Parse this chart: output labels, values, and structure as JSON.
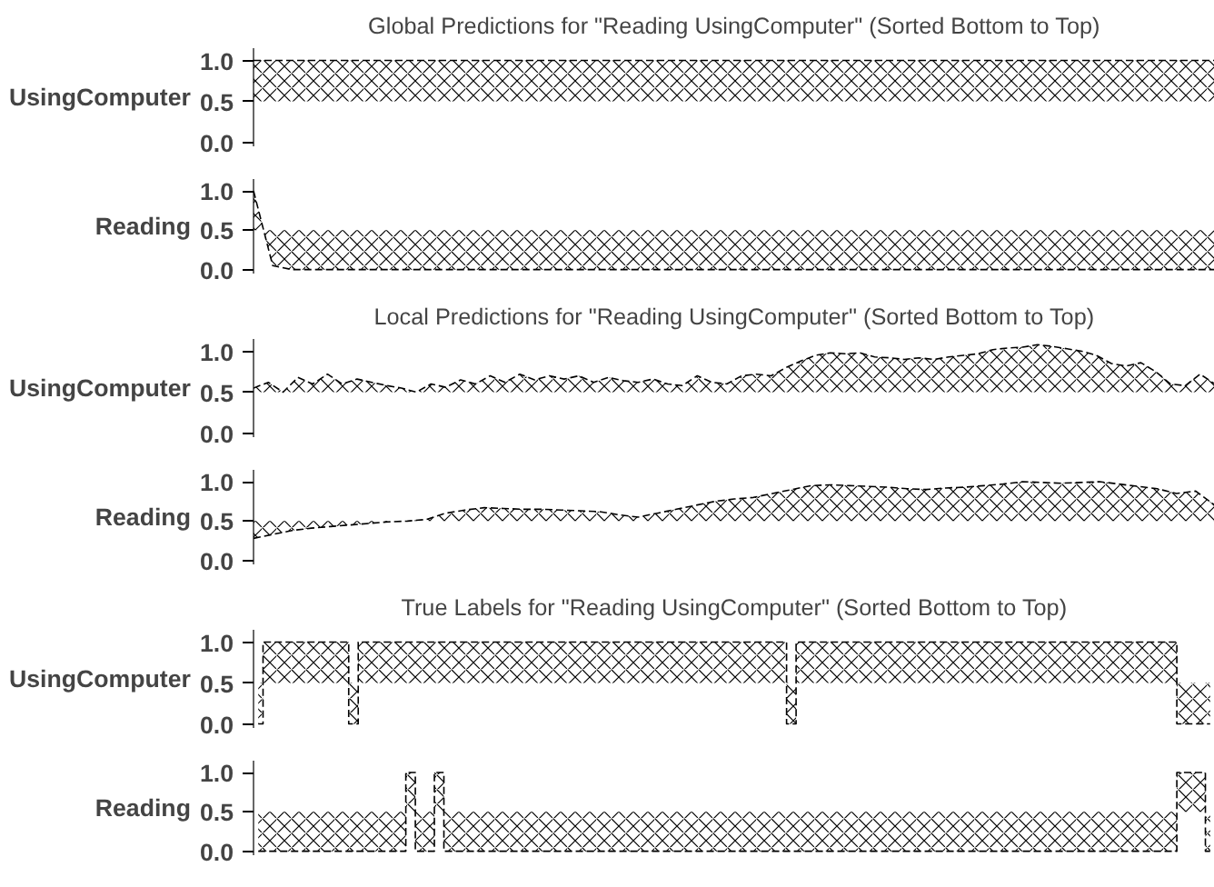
{
  "chart_data": [
    {
      "type": "line",
      "title": "Global Predictions for \"Reading UsingComputer\" (Sorted Bottom to Top)",
      "ylabel": "UsingComputer",
      "categories": [
        null,
        null,
        null,
        null,
        null,
        null,
        null,
        null,
        null,
        null,
        null,
        null,
        null,
        null,
        null,
        null,
        null,
        null,
        null,
        null,
        null,
        null,
        null,
        null,
        null,
        null,
        null,
        null,
        null,
        null,
        null,
        null,
        null,
        null,
        null,
        null,
        null,
        null,
        null,
        null,
        null,
        null,
        null,
        null,
        null,
        null,
        null,
        null,
        null,
        null,
        null
      ],
      "ylim": [
        -0.05,
        1.15
      ],
      "yticks": [
        {
          "value": 0,
          "label": "0.0"
        },
        {
          "value": 0.5,
          "label": "0.5"
        },
        {
          "value": 1,
          "label": "1.0"
        }
      ],
      "tick_labels": "y",
      "line_style": "dashed",
      "series": [
        {
          "color": "#000000",
          "values": [
            1,
            1,
            1,
            1,
            1,
            1,
            1,
            1,
            1,
            1,
            1,
            1,
            1,
            1,
            1,
            1,
            1,
            1,
            1,
            1,
            1,
            1,
            1,
            1,
            1,
            1,
            1,
            1,
            1,
            1,
            1,
            1,
            1,
            1,
            1,
            1,
            1,
            1,
            1,
            1,
            1,
            1,
            1,
            1,
            1,
            1,
            1,
            1,
            1,
            1,
            1
          ],
          "lower": [
            0.5,
            0.5,
            0.5,
            0.5,
            0.5,
            0.5,
            0.5,
            0.5,
            0.5,
            0.5,
            0.5,
            0.5,
            0.5,
            0.5,
            0.5,
            0.5,
            0.5,
            0.5,
            0.5,
            0.5,
            0.5,
            0.5,
            0.5,
            0.5,
            0.5,
            0.5,
            0.5,
            0.5,
            0.5,
            0.5,
            0.5,
            0.5,
            0.5,
            0.5,
            0.5,
            0.5,
            0.5,
            0.5,
            0.5,
            0.5,
            0.5,
            0.5,
            0.5,
            0.5,
            0.5,
            0.5,
            0.5,
            0.5,
            0.5,
            0.5,
            0.5
          ],
          "upper": [
            1,
            1,
            1,
            1,
            1,
            1,
            1,
            1,
            1,
            1,
            1,
            1,
            1,
            1,
            1,
            1,
            1,
            1,
            1,
            1,
            1,
            1,
            1,
            1,
            1,
            1,
            1,
            1,
            1,
            1,
            1,
            1,
            1,
            1,
            1,
            1,
            1,
            1,
            1,
            1,
            1,
            1,
            1,
            1,
            1,
            1,
            1,
            1,
            1,
            1,
            1
          ]
        }
      ]
    },
    {
      "type": "line",
      "ylabel": "Reading",
      "categories": [
        null,
        null,
        null,
        null,
        null,
        null,
        null,
        null,
        null,
        null,
        null,
        null,
        null,
        null,
        null,
        null,
        null,
        null,
        null,
        null,
        null,
        null,
        null,
        null,
        null,
        null,
        null,
        null,
        null,
        null,
        null,
        null,
        null,
        null,
        null,
        null,
        null,
        null,
        null,
        null,
        null,
        null,
        null,
        null,
        null,
        null,
        null,
        null,
        null,
        null,
        null
      ],
      "ylim": [
        -0.05,
        1.15
      ],
      "yticks": [
        {
          "value": 0,
          "label": "0.0"
        },
        {
          "value": 0.5,
          "label": "0.5"
        },
        {
          "value": 1,
          "label": "1.0"
        }
      ],
      "tick_labels": "y",
      "line_style": "dashed",
      "series": [
        {
          "color": "#000000",
          "values": [
            1.0,
            0.05,
            0,
            0,
            0,
            0,
            0,
            0,
            0,
            0,
            0,
            0,
            0,
            0,
            0,
            0,
            0,
            0,
            0,
            0,
            0,
            0,
            0,
            0,
            0,
            0,
            0,
            0,
            0,
            0,
            0,
            0,
            0,
            0,
            0,
            0,
            0,
            0,
            0,
            0,
            0,
            0,
            0,
            0,
            0,
            0,
            0,
            0,
            0,
            0,
            0
          ],
          "lower": [
            0.5,
            0.5,
            0.5,
            0.5,
            0.5,
            0.5,
            0.5,
            0.5,
            0.5,
            0.5,
            0.5,
            0.5,
            0.5,
            0.5,
            0.5,
            0.5,
            0.5,
            0.5,
            0.5,
            0.5,
            0.5,
            0.5,
            0.5,
            0.5,
            0.5,
            0.5,
            0.5,
            0.5,
            0.5,
            0.5,
            0.5,
            0.5,
            0.5,
            0.5,
            0.5,
            0.5,
            0.5,
            0.5,
            0.5,
            0.5,
            0.5,
            0.5,
            0.5,
            0.5,
            0.5,
            0.5,
            0.5,
            0.5,
            0.5,
            0.5,
            0.5
          ],
          "upper": [
            1.0,
            0.05,
            0,
            0,
            0,
            0,
            0,
            0,
            0,
            0,
            0,
            0,
            0,
            0,
            0,
            0,
            0,
            0,
            0,
            0,
            0,
            0,
            0,
            0,
            0,
            0,
            0,
            0,
            0,
            0,
            0,
            0,
            0,
            0,
            0,
            0,
            0,
            0,
            0,
            0,
            0,
            0,
            0,
            0,
            0,
            0,
            0,
            0,
            0,
            0,
            0
          ]
        }
      ]
    },
    {
      "type": "line",
      "title": "Local Predictions for \"Reading UsingComputer\" (Sorted Bottom to Top)",
      "ylabel": "UsingComputer",
      "categories": [
        null,
        null,
        null,
        null,
        null,
        null,
        null,
        null,
        null,
        null,
        null,
        null,
        null,
        null,
        null,
        null,
        null,
        null,
        null,
        null,
        null,
        null,
        null,
        null,
        null,
        null,
        null,
        null,
        null,
        null,
        null,
        null,
        null,
        null,
        null,
        null,
        null,
        null,
        null,
        null,
        null,
        null,
        null,
        null,
        null,
        null,
        null,
        null,
        null,
        null,
        null,
        null,
        null,
        null,
        null,
        null,
        null,
        null,
        null,
        null,
        null,
        null,
        null,
        null,
        null,
        null
      ],
      "ylim": [
        -0.05,
        1.15
      ],
      "yticks": [
        {
          "value": 0,
          "label": "0.0"
        },
        {
          "value": 0.5,
          "label": "0.5"
        },
        {
          "value": 1,
          "label": "1.0"
        }
      ],
      "tick_labels": "y",
      "line_style": "dashed",
      "series": [
        {
          "color": "#000000",
          "values": [
            0.55,
            0.62,
            0.5,
            0.68,
            0.6,
            0.72,
            0.6,
            0.66,
            0.62,
            0.58,
            0.55,
            0.5,
            0.6,
            0.56,
            0.65,
            0.6,
            0.7,
            0.62,
            0.72,
            0.65,
            0.7,
            0.66,
            0.7,
            0.62,
            0.68,
            0.64,
            0.62,
            0.66,
            0.6,
            0.58,
            0.7,
            0.62,
            0.6,
            0.7,
            0.72,
            0.7,
            0.8,
            0.88,
            0.95,
            0.98,
            0.97,
            0.98,
            0.93,
            0.92,
            0.9,
            0.92,
            0.9,
            0.93,
            0.95,
            0.97,
            1.02,
            1.04,
            1.05,
            1.08,
            1.06,
            1.03,
            1.0,
            0.95,
            0.85,
            0.82,
            0.86,
            0.75,
            0.6,
            0.58,
            0.72,
            0.6
          ],
          "lower": [
            0.5,
            0.5,
            0.5,
            0.5,
            0.5,
            0.5,
            0.5,
            0.5,
            0.5,
            0.5,
            0.5,
            0.5,
            0.5,
            0.5,
            0.5,
            0.5,
            0.5,
            0.5,
            0.5,
            0.5,
            0.5,
            0.5,
            0.5,
            0.5,
            0.5,
            0.5,
            0.5,
            0.5,
            0.5,
            0.5,
            0.5,
            0.5,
            0.5,
            0.5,
            0.5,
            0.5,
            0.5,
            0.5,
            0.5,
            0.5,
            0.5,
            0.5,
            0.5,
            0.5,
            0.5,
            0.5,
            0.5,
            0.5,
            0.5,
            0.5,
            0.5,
            0.5,
            0.5,
            0.5,
            0.5,
            0.5,
            0.5,
            0.5,
            0.5,
            0.5,
            0.5,
            0.5,
            0.5,
            0.5,
            0.5,
            0.5
          ],
          "upper": [
            0.55,
            0.62,
            0.5,
            0.68,
            0.6,
            0.72,
            0.6,
            0.66,
            0.62,
            0.58,
            0.55,
            0.5,
            0.6,
            0.56,
            0.65,
            0.6,
            0.7,
            0.62,
            0.72,
            0.65,
            0.7,
            0.66,
            0.7,
            0.62,
            0.68,
            0.64,
            0.62,
            0.66,
            0.6,
            0.58,
            0.7,
            0.62,
            0.6,
            0.7,
            0.72,
            0.7,
            0.8,
            0.88,
            0.95,
            0.98,
            0.97,
            0.98,
            0.93,
            0.92,
            0.9,
            0.92,
            0.9,
            0.93,
            0.95,
            0.97,
            1.02,
            1.04,
            1.05,
            1.08,
            1.06,
            1.03,
            1.0,
            0.95,
            0.85,
            0.82,
            0.86,
            0.75,
            0.6,
            0.58,
            0.72,
            0.6
          ]
        }
      ]
    },
    {
      "type": "line",
      "ylabel": "Reading",
      "categories": [
        null,
        null,
        null,
        null,
        null,
        null,
        null,
        null,
        null,
        null,
        null,
        null,
        null,
        null,
        null,
        null,
        null,
        null,
        null,
        null,
        null,
        null,
        null,
        null,
        null,
        null,
        null,
        null,
        null,
        null,
        null,
        null,
        null,
        null,
        null,
        null,
        null,
        null,
        null,
        null,
        null,
        null,
        null,
        null,
        null,
        null,
        null,
        null,
        null,
        null,
        null
      ],
      "ylim": [
        -0.05,
        1.15
      ],
      "yticks": [
        {
          "value": 0,
          "label": "0.0"
        },
        {
          "value": 0.5,
          "label": "0.5"
        },
        {
          "value": 1,
          "label": "1.0"
        }
      ],
      "tick_labels": "y",
      "line_style": "dashed",
      "series": [
        {
          "color": "#000000",
          "values": [
            0.28,
            0.33,
            0.38,
            0.41,
            0.43,
            0.45,
            0.47,
            0.49,
            0.5,
            0.52,
            0.6,
            0.64,
            0.67,
            0.66,
            0.65,
            0.65,
            0.64,
            0.63,
            0.62,
            0.58,
            0.55,
            0.6,
            0.65,
            0.7,
            0.75,
            0.78,
            0.8,
            0.85,
            0.9,
            0.95,
            0.96,
            0.95,
            0.94,
            0.93,
            0.91,
            0.9,
            0.92,
            0.93,
            0.95,
            0.97,
            1.0,
            0.99,
            0.98,
            0.99,
            1.0,
            0.97,
            0.94,
            0.91,
            0.85,
            0.88,
            0.7
          ],
          "lower": [
            0.5,
            0.5,
            0.5,
            0.5,
            0.5,
            0.5,
            0.5,
            0.5,
            0.5,
            0.5,
            0.5,
            0.5,
            0.5,
            0.5,
            0.5,
            0.5,
            0.5,
            0.5,
            0.5,
            0.5,
            0.5,
            0.5,
            0.5,
            0.5,
            0.5,
            0.5,
            0.5,
            0.5,
            0.5,
            0.5,
            0.5,
            0.5,
            0.5,
            0.5,
            0.5,
            0.5,
            0.5,
            0.5,
            0.5,
            0.5,
            0.5,
            0.5,
            0.5,
            0.5,
            0.5,
            0.5,
            0.5,
            0.5,
            0.5,
            0.5,
            0.5
          ],
          "upper": [
            0.28,
            0.33,
            0.38,
            0.41,
            0.43,
            0.45,
            0.47,
            0.49,
            0.5,
            0.52,
            0.6,
            0.64,
            0.67,
            0.66,
            0.65,
            0.65,
            0.64,
            0.63,
            0.62,
            0.58,
            0.55,
            0.6,
            0.65,
            0.7,
            0.75,
            0.78,
            0.8,
            0.85,
            0.9,
            0.95,
            0.96,
            0.95,
            0.94,
            0.93,
            0.91,
            0.9,
            0.92,
            0.93,
            0.95,
            0.97,
            1.0,
            0.99,
            0.98,
            0.99,
            1.0,
            0.97,
            0.94,
            0.91,
            0.85,
            0.88,
            0.7
          ]
        }
      ]
    },
    {
      "type": "step",
      "title": "True Labels for \"Reading UsingComputer\" (Sorted Bottom to Top)",
      "ylabel": "UsingComputer",
      "categories": [
        null,
        null,
        null,
        null,
        null,
        null,
        null,
        null,
        null,
        null,
        null,
        null,
        null,
        null,
        null,
        null,
        null,
        null,
        null,
        null,
        null,
        null,
        null,
        null,
        null,
        null,
        null,
        null,
        null,
        null,
        null,
        null,
        null,
        null,
        null,
        null,
        null,
        null,
        null,
        null,
        null,
        null,
        null,
        null,
        null,
        null,
        null,
        null,
        null,
        null,
        null,
        null,
        null,
        null,
        null,
        null,
        null,
        null,
        null,
        null,
        null,
        null,
        null,
        null,
        null,
        null,
        null,
        null,
        null,
        null,
        null,
        null,
        null,
        null,
        null,
        null,
        null,
        null,
        null,
        null,
        null,
        null,
        null,
        null,
        null,
        null,
        null,
        null,
        null,
        null,
        null,
        null,
        null,
        null,
        null,
        null,
        null,
        null,
        null,
        null,
        null
      ],
      "ylim": [
        -0.05,
        1.15
      ],
      "yticks": [
        {
          "value": 0,
          "label": "0.0"
        },
        {
          "value": 0.5,
          "label": "0.5"
        },
        {
          "value": 1,
          "label": "1.0"
        }
      ],
      "tick_labels": "y",
      "line_style": "dashed",
      "series": [
        {
          "color": "#000000",
          "values": [
            0,
            1,
            1,
            1,
            1,
            1,
            1,
            1,
            1,
            1,
            0,
            1,
            1,
            1,
            1,
            1,
            1,
            1,
            1,
            1,
            1,
            1,
            1,
            1,
            1,
            1,
            1,
            1,
            1,
            1,
            1,
            1,
            1,
            1,
            1,
            1,
            1,
            1,
            1,
            1,
            1,
            1,
            1,
            1,
            1,
            1,
            1,
            1,
            1,
            1,
            1,
            1,
            1,
            1,
            1,
            1,
            0,
            1,
            1,
            1,
            1,
            1,
            1,
            1,
            1,
            1,
            1,
            1,
            1,
            1,
            1,
            1,
            1,
            1,
            1,
            1,
            1,
            1,
            1,
            1,
            1,
            1,
            1,
            1,
            1,
            1,
            1,
            1,
            1,
            1,
            1,
            1,
            1,
            1,
            1,
            1,
            1,
            0,
            0,
            0,
            0
          ],
          "lower": [
            0.5,
            0.5,
            0.5,
            0.5,
            0.5,
            0.5,
            0.5,
            0.5,
            0.5,
            0.5,
            0.5,
            0.5,
            0.5,
            0.5,
            0.5,
            0.5,
            0.5,
            0.5,
            0.5,
            0.5,
            0.5,
            0.5,
            0.5,
            0.5,
            0.5,
            0.5,
            0.5,
            0.5,
            0.5,
            0.5,
            0.5,
            0.5,
            0.5,
            0.5,
            0.5,
            0.5,
            0.5,
            0.5,
            0.5,
            0.5,
            0.5,
            0.5,
            0.5,
            0.5,
            0.5,
            0.5,
            0.5,
            0.5,
            0.5,
            0.5,
            0.5,
            0.5,
            0.5,
            0.5,
            0.5,
            0.5,
            0.5,
            0.5,
            0.5,
            0.5,
            0.5,
            0.5,
            0.5,
            0.5,
            0.5,
            0.5,
            0.5,
            0.5,
            0.5,
            0.5,
            0.5,
            0.5,
            0.5,
            0.5,
            0.5,
            0.5,
            0.5,
            0.5,
            0.5,
            0.5,
            0.5,
            0.5,
            0.5,
            0.5,
            0.5,
            0.5,
            0.5,
            0.5,
            0.5,
            0.5,
            0.5,
            0.5,
            0.5,
            0.5,
            0.5,
            0.5,
            0.5,
            0.5,
            0.5,
            0.5,
            0.5
          ],
          "upper": [
            0,
            1,
            1,
            1,
            1,
            1,
            1,
            1,
            1,
            1,
            0,
            1,
            1,
            1,
            1,
            1,
            1,
            1,
            1,
            1,
            1,
            1,
            1,
            1,
            1,
            1,
            1,
            1,
            1,
            1,
            1,
            1,
            1,
            1,
            1,
            1,
            1,
            1,
            1,
            1,
            1,
            1,
            1,
            1,
            1,
            1,
            1,
            1,
            1,
            1,
            1,
            1,
            1,
            1,
            1,
            1,
            0,
            1,
            1,
            1,
            1,
            1,
            1,
            1,
            1,
            1,
            1,
            1,
            1,
            1,
            1,
            1,
            1,
            1,
            1,
            1,
            1,
            1,
            1,
            1,
            1,
            1,
            1,
            1,
            1,
            1,
            1,
            1,
            1,
            1,
            1,
            1,
            1,
            1,
            1,
            1,
            1,
            0,
            0,
            0,
            0
          ]
        }
      ]
    },
    {
      "type": "step",
      "ylabel": "Reading",
      "categories": [
        null,
        null,
        null,
        null,
        null,
        null,
        null,
        null,
        null,
        null,
        null,
        null,
        null,
        null,
        null,
        null,
        null,
        null,
        null,
        null,
        null,
        null,
        null,
        null,
        null,
        null,
        null,
        null,
        null,
        null,
        null,
        null,
        null,
        null,
        null,
        null,
        null,
        null,
        null,
        null,
        null,
        null,
        null,
        null,
        null,
        null,
        null,
        null,
        null,
        null,
        null,
        null,
        null,
        null,
        null,
        null,
        null,
        null,
        null,
        null,
        null,
        null,
        null,
        null,
        null,
        null,
        null,
        null,
        null,
        null,
        null,
        null,
        null,
        null,
        null,
        null,
        null,
        null,
        null,
        null,
        null,
        null,
        null,
        null,
        null,
        null,
        null,
        null,
        null,
        null,
        null,
        null,
        null,
        null,
        null,
        null,
        null,
        null,
        null,
        null,
        null
      ],
      "ylim": [
        -0.05,
        1.15
      ],
      "yticks": [
        {
          "value": 0,
          "label": "0.0"
        },
        {
          "value": 0.5,
          "label": "0.5"
        },
        {
          "value": 1,
          "label": "1.0"
        }
      ],
      "tick_labels": "y",
      "line_style": "dashed",
      "series": [
        {
          "color": "#000000",
          "values": [
            0,
            0,
            0,
            0,
            0,
            0,
            0,
            0,
            0,
            0,
            0,
            0,
            0,
            0,
            0,
            0,
            1,
            0,
            0,
            1,
            0,
            0,
            0,
            0,
            0,
            0,
            0,
            0,
            0,
            0,
            0,
            0,
            0,
            0,
            0,
            0,
            0,
            0,
            0,
            0,
            0,
            0,
            0,
            0,
            0,
            0,
            0,
            0,
            0,
            0,
            0,
            0,
            0,
            0,
            0,
            0,
            0,
            0,
            0,
            0,
            0,
            0,
            0,
            0,
            0,
            0,
            0,
            0,
            0,
            0,
            0,
            0,
            0,
            0,
            0,
            0,
            0,
            0,
            0,
            0,
            0,
            0,
            0,
            0,
            0,
            0,
            0,
            0,
            0,
            0,
            0,
            0,
            0,
            0,
            0,
            0,
            0,
            1,
            1,
            1,
            0
          ],
          "lower": [
            0.5,
            0.5,
            0.5,
            0.5,
            0.5,
            0.5,
            0.5,
            0.5,
            0.5,
            0.5,
            0.5,
            0.5,
            0.5,
            0.5,
            0.5,
            0.5,
            0.5,
            0.5,
            0.5,
            0.5,
            0.5,
            0.5,
            0.5,
            0.5,
            0.5,
            0.5,
            0.5,
            0.5,
            0.5,
            0.5,
            0.5,
            0.5,
            0.5,
            0.5,
            0.5,
            0.5,
            0.5,
            0.5,
            0.5,
            0.5,
            0.5,
            0.5,
            0.5,
            0.5,
            0.5,
            0.5,
            0.5,
            0.5,
            0.5,
            0.5,
            0.5,
            0.5,
            0.5,
            0.5,
            0.5,
            0.5,
            0.5,
            0.5,
            0.5,
            0.5,
            0.5,
            0.5,
            0.5,
            0.5,
            0.5,
            0.5,
            0.5,
            0.5,
            0.5,
            0.5,
            0.5,
            0.5,
            0.5,
            0.5,
            0.5,
            0.5,
            0.5,
            0.5,
            0.5,
            0.5,
            0.5,
            0.5,
            0.5,
            0.5,
            0.5,
            0.5,
            0.5,
            0.5,
            0.5,
            0.5,
            0.5,
            0.5,
            0.5,
            0.5,
            0.5,
            0.5,
            0.5,
            0.5,
            0.5,
            0.5,
            0.5
          ],
          "upper": [
            0,
            0,
            0,
            0,
            0,
            0,
            0,
            0,
            0,
            0,
            0,
            0,
            0,
            0,
            0,
            0,
            1,
            0,
            0,
            1,
            0,
            0,
            0,
            0,
            0,
            0,
            0,
            0,
            0,
            0,
            0,
            0,
            0,
            0,
            0,
            0,
            0,
            0,
            0,
            0,
            0,
            0,
            0,
            0,
            0,
            0,
            0,
            0,
            0,
            0,
            0,
            0,
            0,
            0,
            0,
            0,
            0,
            0,
            0,
            0,
            0,
            0,
            0,
            0,
            0,
            0,
            0,
            0,
            0,
            0,
            0,
            0,
            0,
            0,
            0,
            0,
            0,
            0,
            0,
            0,
            0,
            0,
            0,
            0,
            0,
            0,
            0,
            0,
            0,
            0,
            0,
            0,
            0,
            0,
            0,
            0,
            0,
            1,
            1,
            1,
            0
          ]
        }
      ]
    }
  ]
}
